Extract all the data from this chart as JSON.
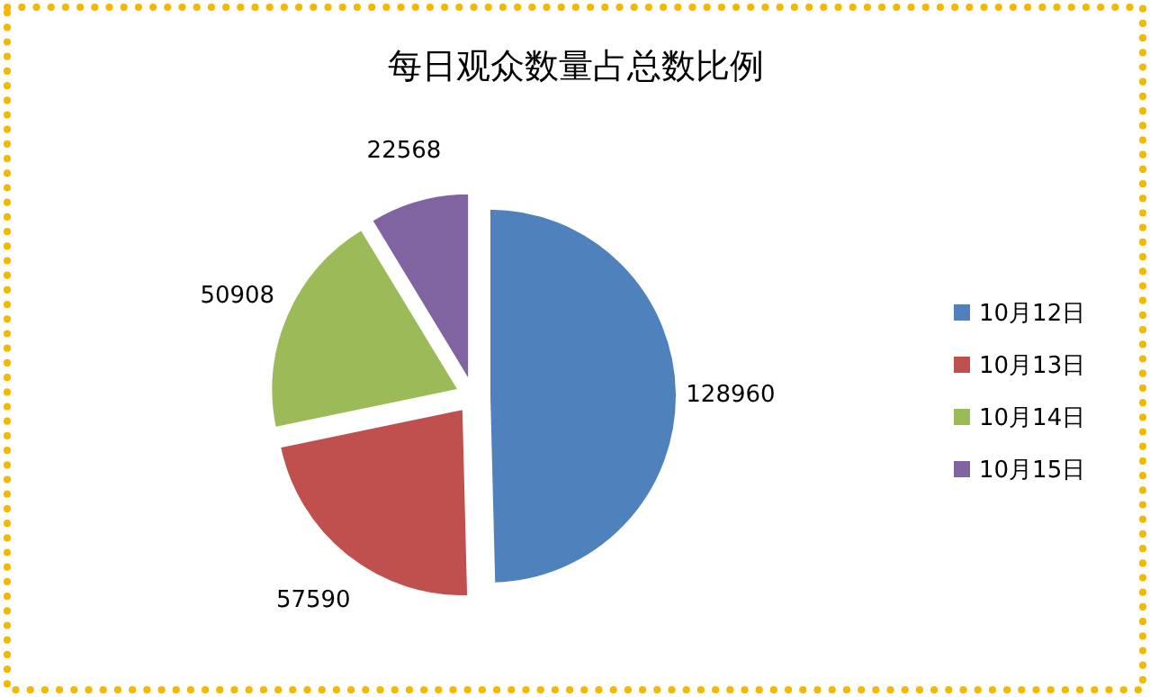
{
  "chart_data": {
    "type": "pie",
    "title": "每日观众数量占总数比例",
    "categories": [
      "10月12日",
      "10月13日",
      "10月14日",
      "10月15日"
    ],
    "values": [
      128960,
      57590,
      50908,
      22568
    ],
    "colors": [
      "#4f81bd",
      "#c0504d",
      "#9bbb59",
      "#8064a2"
    ],
    "data_labels": true,
    "legend": "right"
  }
}
